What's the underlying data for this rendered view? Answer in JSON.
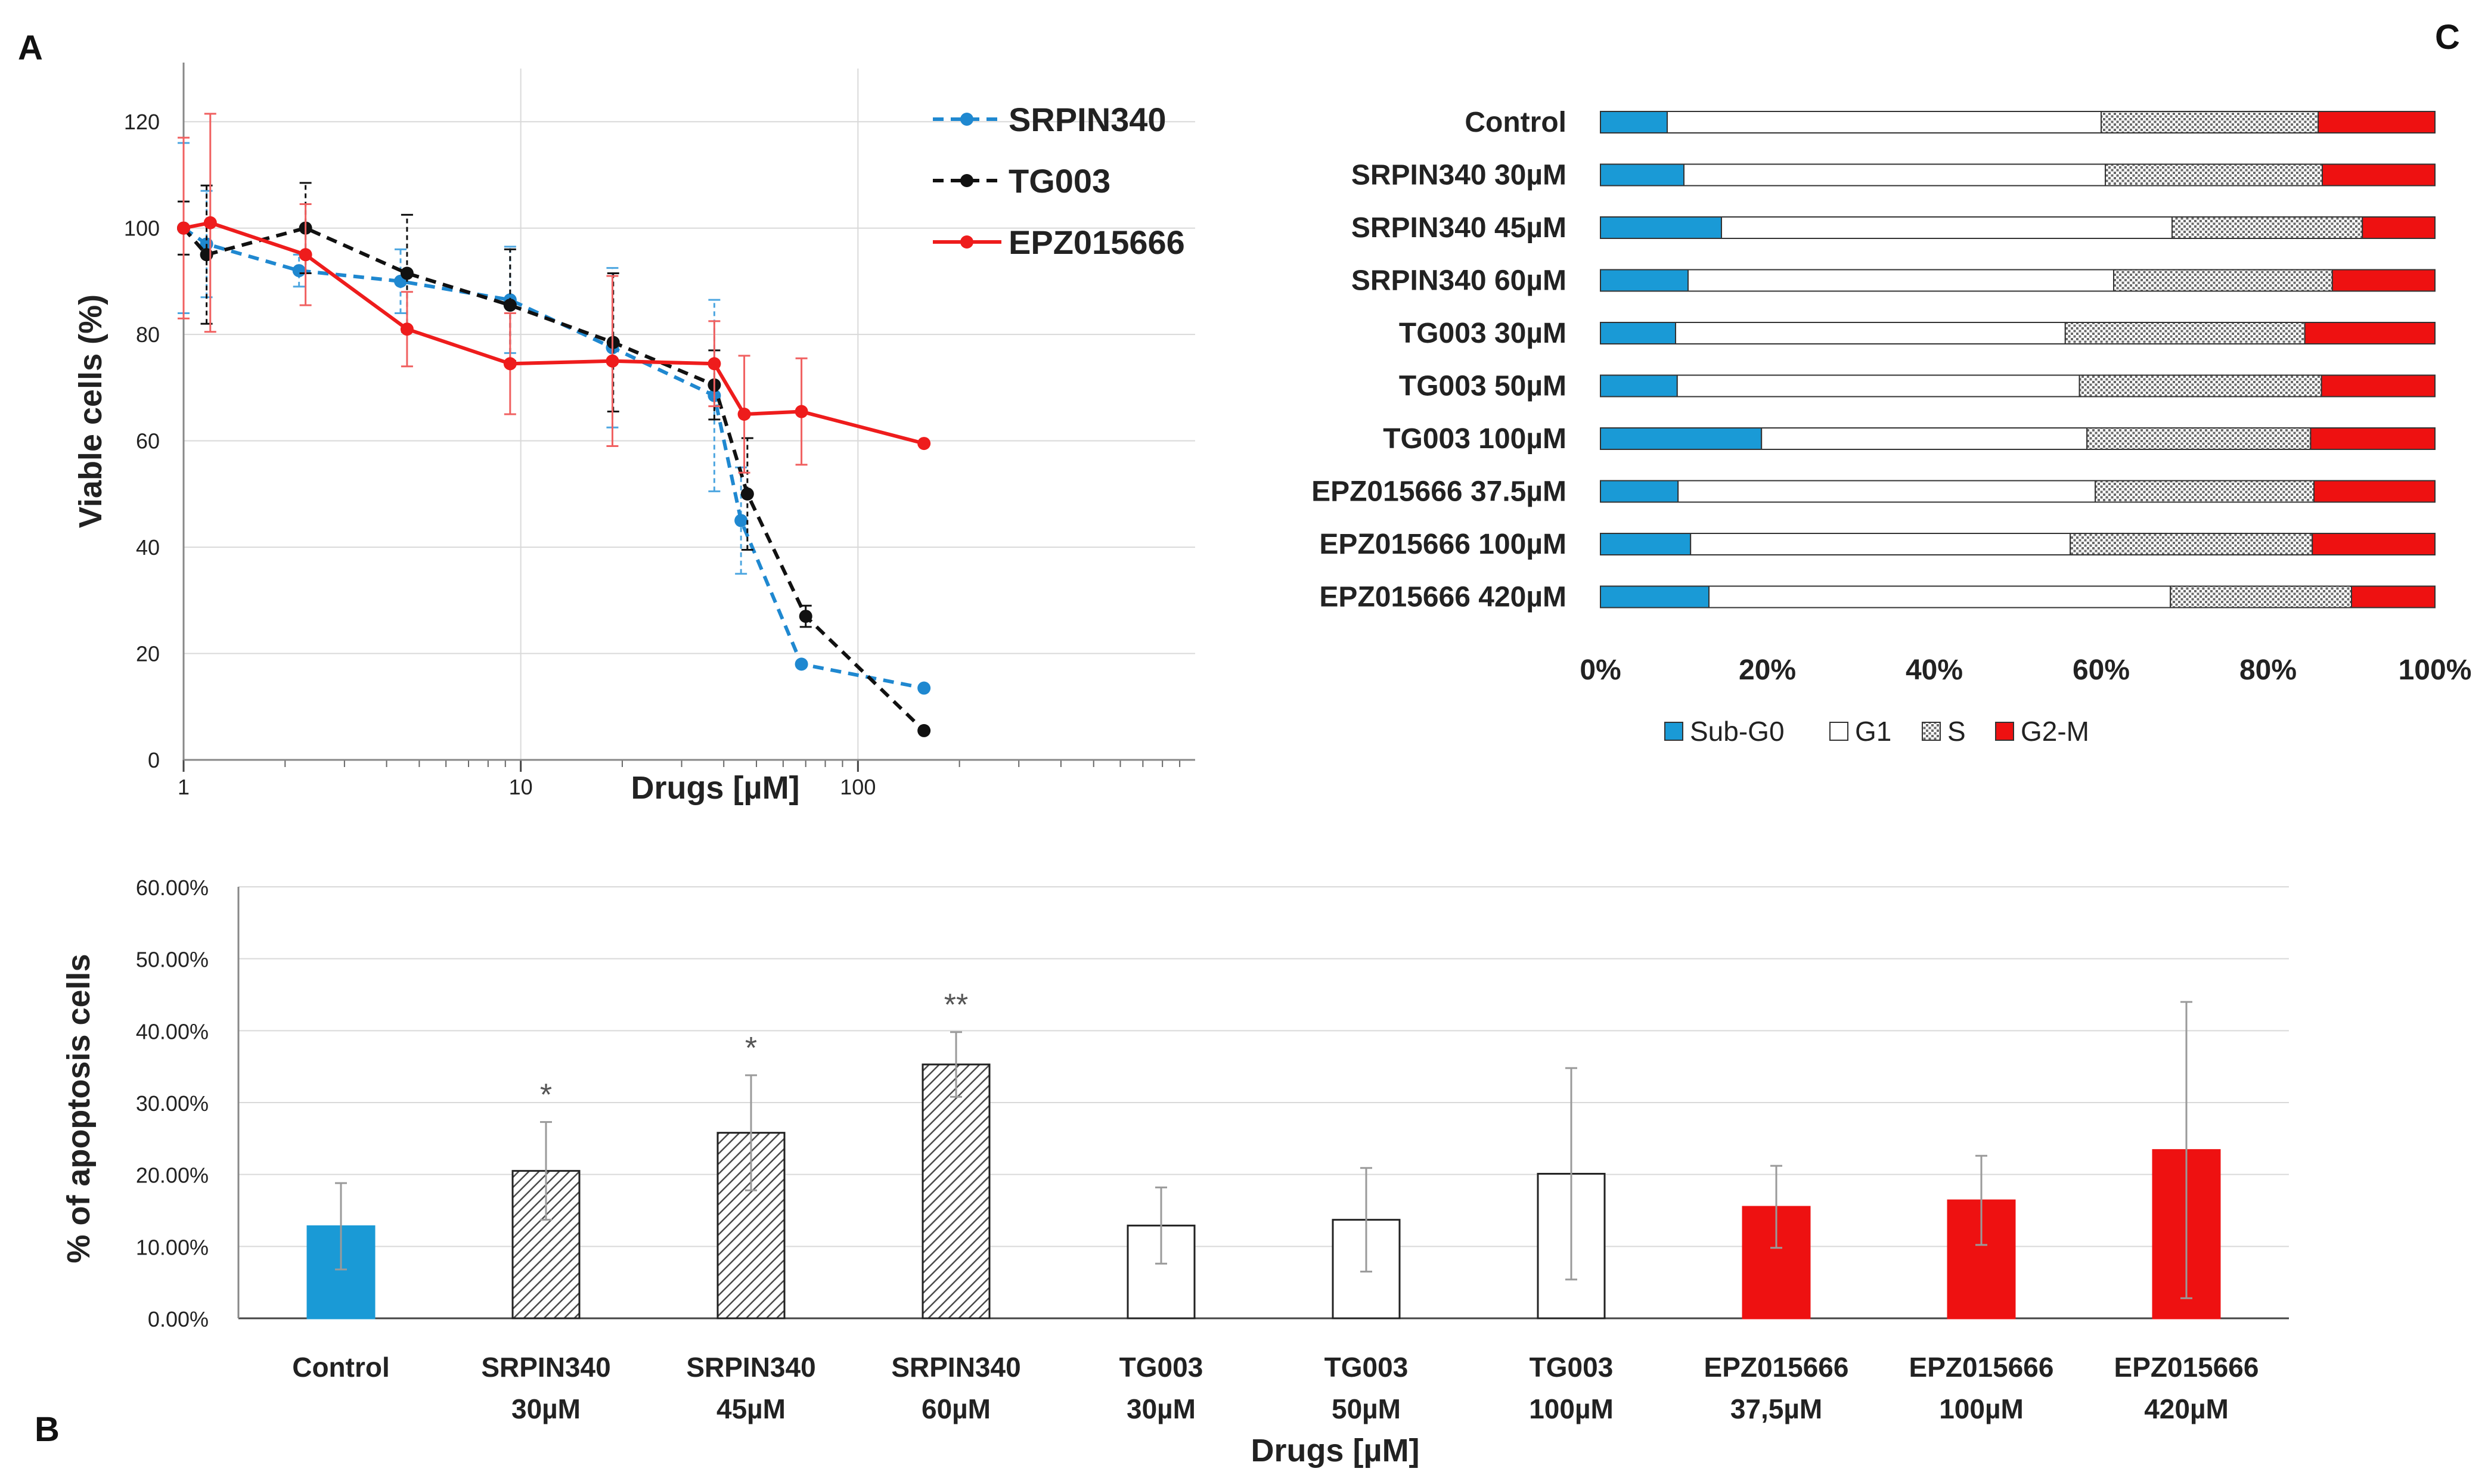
{
  "panel_labels": {
    "a": "A",
    "b": "B",
    "c": "C"
  },
  "chart_data": [
    {
      "panel": "A",
      "type": "line",
      "xscale": "log",
      "xlabel": "Drugs [µM]",
      "ylabel": "Viable cells (%)",
      "xlim": [
        1,
        1000
      ],
      "ylim": [
        0,
        130
      ],
      "x_ticks": [
        1,
        10,
        100
      ],
      "x_tick_labels": [
        "1",
        "10",
        "100"
      ],
      "y_ticks": [
        0,
        20,
        40,
        60,
        80,
        100,
        120
      ],
      "y_tick_labels": [
        "0",
        "20",
        "40",
        "60",
        "80",
        "100",
        "120"
      ],
      "legend_position": "top-right",
      "series": [
        {
          "name": "SRPIN340",
          "color": "#1f88d0",
          "style": "dashed",
          "x": [
            1,
            1.17,
            2.2,
            4.4,
            9.3,
            18.7,
            37.5,
            45,
            68,
            157
          ],
          "y": [
            100,
            97,
            92,
            90,
            86.5,
            77.5,
            68.5,
            45,
            18,
            13.5
          ],
          "err": [
            16,
            10,
            3,
            6,
            10,
            15,
            18,
            10,
            0,
            0
          ]
        },
        {
          "name": "TG003",
          "color": "#111111",
          "style": "dashed",
          "x": [
            1,
            1.17,
            2.3,
            4.6,
            9.3,
            18.8,
            37.5,
            47,
            70,
            157
          ],
          "y": [
            100,
            95,
            100,
            91.5,
            85.5,
            78.5,
            70.5,
            50,
            27,
            5.5
          ],
          "err": [
            5,
            13,
            8.5,
            11,
            10.5,
            13,
            6.5,
            10.5,
            2,
            0
          ]
        },
        {
          "name": "EPZ015666",
          "color": "#ee1c1c",
          "style": "solid",
          "x": [
            1,
            1.2,
            2.3,
            4.6,
            9.3,
            18.7,
            37.5,
            46,
            68,
            157
          ],
          "y": [
            100,
            101,
            95,
            81,
            74.5,
            75,
            74.5,
            65,
            65.5,
            59.5
          ],
          "err": [
            17,
            20.5,
            9.5,
            7,
            9.5,
            16,
            8,
            11,
            10,
            0
          ]
        }
      ]
    },
    {
      "panel": "B",
      "type": "bar",
      "xlabel": "Drugs [µM]",
      "ylabel": "% of apoptosis cells",
      "ylim": [
        0,
        0.6
      ],
      "y_ticks": [
        0,
        0.1,
        0.2,
        0.3,
        0.4,
        0.5,
        0.6
      ],
      "y_tick_labels": [
        "0.00%",
        "10.00%",
        "20.00%",
        "30.00%",
        "40.00%",
        "50.00%",
        "60.00%"
      ],
      "categories": [
        [
          "Control"
        ],
        [
          "SRPIN340",
          "30µM"
        ],
        [
          "SRPIN340",
          "45µM"
        ],
        [
          "SRPIN340",
          "60µM"
        ],
        [
          "TG003",
          "30µM"
        ],
        [
          "TG003",
          "50µM"
        ],
        [
          "TG003",
          "100µM"
        ],
        [
          "EPZ015666",
          "37,5µM"
        ],
        [
          "EPZ015666",
          "100µM"
        ],
        [
          "EPZ015666",
          "420µM"
        ]
      ],
      "values": [
        0.128,
        0.205,
        0.258,
        0.353,
        0.129,
        0.137,
        0.201,
        0.155,
        0.164,
        0.234
      ],
      "errors": [
        0.06,
        0.068,
        0.08,
        0.045,
        0.053,
        0.072,
        0.147,
        0.057,
        0.062,
        0.206
      ],
      "fills": [
        "blue",
        "hatch",
        "hatch",
        "hatch",
        "white",
        "white",
        "white",
        "red",
        "red",
        "red"
      ],
      "significance": [
        "",
        "*",
        "*",
        "**",
        "",
        "",
        "",
        "",
        "",
        ""
      ],
      "colors": {
        "blue": "#1a9ad6",
        "red": "#ee1111"
      }
    },
    {
      "panel": "C",
      "type": "bar",
      "orientation": "horizontal",
      "stacked": true,
      "xlim": [
        0,
        1
      ],
      "x_ticks": [
        0,
        0.2,
        0.4,
        0.6,
        0.8,
        1
      ],
      "x_tick_labels": [
        "0%",
        "20%",
        "40%",
        "60%",
        "80%",
        "100%"
      ],
      "categories": [
        "Control",
        "SRPIN340 30µM",
        "SRPIN340 45µM",
        "SRPIN340 60µM",
        "TG003 30µM",
        "TG003 50µM",
        "TG003 100µM",
        "EPZ015666 37.5µM",
        "EPZ015666 100µM",
        "EPZ015666 420µM"
      ],
      "legend_position": "bottom",
      "series": [
        {
          "name": "Sub-G0",
          "fill": "blue",
          "color": "#1a9ad6",
          "values": [
            0.08,
            0.1,
            0.145,
            0.105,
            0.09,
            0.092,
            0.193,
            0.093,
            0.108,
            0.13
          ]
        },
        {
          "name": "G1",
          "fill": "white",
          "color": "#ffffff",
          "values": [
            0.52,
            0.505,
            0.54,
            0.51,
            0.467,
            0.482,
            0.39,
            0.5,
            0.455,
            0.553
          ]
        },
        {
          "name": "S",
          "fill": "dots",
          "color": "#d8d8d8",
          "values": [
            0.26,
            0.26,
            0.228,
            0.262,
            0.287,
            0.29,
            0.268,
            0.262,
            0.29,
            0.217
          ]
        },
        {
          "name": "G2-M",
          "fill": "red",
          "color": "#ee1111",
          "values": [
            0.14,
            0.135,
            0.087,
            0.123,
            0.156,
            0.136,
            0.149,
            0.145,
            0.147,
            0.1
          ]
        }
      ]
    }
  ]
}
